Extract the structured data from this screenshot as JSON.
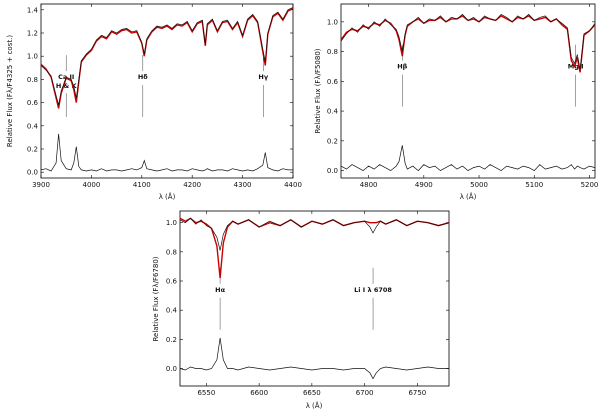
{
  "panel_labels": {
    "ylabel_1": "Relative Flux (Fλ/F4325 + cost.)",
    "ylabel_2": "Relative Flux (Fλ/F5080)",
    "ylabel_3": "Relative Flux (Fλ/F6780)",
    "xlabel": "λ (Å)"
  },
  "colors": {
    "observed": "#111111",
    "model": "#cc0000",
    "frame": "#000000"
  },
  "chart_data": [
    {
      "type": "line",
      "title": "",
      "xlabel": "λ (Å)",
      "ylabel": "Relative Flux (Fλ/F4325 + cost.)",
      "xlim": [
        3900,
        4400
      ],
      "ylim": [
        -0.05,
        1.45
      ],
      "xticks": [
        3900,
        4000,
        4100,
        4200,
        4300,
        4400
      ],
      "yticks": [
        0.0,
        0.2,
        0.4,
        0.6,
        0.8,
        1.0,
        1.2,
        1.4
      ],
      "grid": false,
      "x": [
        3900,
        3910,
        3920,
        3930,
        3935,
        3940,
        3950,
        3960,
        3965,
        3970,
        3975,
        3980,
        3990,
        4000,
        4010,
        4020,
        4030,
        4040,
        4050,
        4060,
        4070,
        4080,
        4090,
        4100,
        4105,
        4110,
        4120,
        4130,
        4140,
        4150,
        4160,
        4170,
        4180,
        4190,
        4200,
        4210,
        4220,
        4226,
        4230,
        4240,
        4250,
        4260,
        4270,
        4280,
        4290,
        4300,
        4310,
        4320,
        4330,
        4340,
        4345,
        4350,
        4360,
        4370,
        4380,
        4390,
        4400
      ],
      "series": [
        {
          "role": "observed",
          "values": [
            0.92,
            0.88,
            0.83,
            0.66,
            0.58,
            0.7,
            0.82,
            0.8,
            0.74,
            0.64,
            0.8,
            0.96,
            1.02,
            1.06,
            1.14,
            1.18,
            1.16,
            1.22,
            1.2,
            1.23,
            1.24,
            1.21,
            1.22,
            1.12,
            1.02,
            1.15,
            1.22,
            1.26,
            1.25,
            1.27,
            1.24,
            1.28,
            1.27,
            1.3,
            1.22,
            1.29,
            1.31,
            1.1,
            1.28,
            1.32,
            1.22,
            1.3,
            1.31,
            1.24,
            1.3,
            1.18,
            1.32,
            1.36,
            1.3,
            1.06,
            0.95,
            1.2,
            1.35,
            1.38,
            1.32,
            1.4,
            1.42
          ]
        },
        {
          "role": "model",
          "values": [
            0.93,
            0.89,
            0.82,
            0.64,
            0.55,
            0.68,
            0.81,
            0.79,
            0.71,
            0.6,
            0.78,
            0.95,
            1.01,
            1.05,
            1.13,
            1.17,
            1.15,
            1.21,
            1.19,
            1.22,
            1.23,
            1.2,
            1.21,
            1.11,
            1.0,
            1.14,
            1.21,
            1.25,
            1.24,
            1.26,
            1.23,
            1.27,
            1.26,
            1.29,
            1.21,
            1.28,
            1.3,
            1.09,
            1.27,
            1.31,
            1.21,
            1.29,
            1.3,
            1.23,
            1.29,
            1.17,
            1.31,
            1.35,
            1.29,
            1.04,
            0.92,
            1.19,
            1.34,
            1.37,
            1.31,
            1.39,
            1.41
          ]
        },
        {
          "role": "difference",
          "values": [
            0.02,
            0.03,
            0.01,
            0.08,
            0.33,
            0.1,
            0.03,
            0.02,
            0.08,
            0.22,
            0.05,
            0.02,
            0.01,
            0.02,
            0.01,
            0.03,
            0.01,
            0.02,
            0.02,
            0.01,
            0.02,
            0.03,
            0.02,
            0.04,
            0.1,
            0.03,
            0.02,
            0.01,
            0.02,
            0.03,
            0.01,
            0.02,
            0.02,
            0.01,
            0.03,
            0.02,
            0.01,
            0.02,
            0.03,
            0.01,
            0.02,
            0.02,
            0.01,
            0.03,
            0.02,
            0.01,
            0.02,
            0.01,
            0.03,
            0.06,
            0.17,
            0.04,
            0.02,
            0.01,
            0.03,
            0.02,
            0.02
          ]
        }
      ],
      "annotations": [
        {
          "text": "Ca II",
          "sub": "H & K",
          "x": 3950
        },
        {
          "text": "Hδ",
          "x": 4102
        },
        {
          "text": "Hγ",
          "x": 4341
        }
      ]
    },
    {
      "type": "line",
      "title": "",
      "xlabel": "λ (Å)",
      "ylabel": "Relative Flux (Fλ/F5080)",
      "xlim": [
        4750,
        5210
      ],
      "ylim": [
        -0.05,
        1.12
      ],
      "xticks": [
        4800,
        4900,
        5000,
        5100,
        5200
      ],
      "yticks": [
        0.0,
        0.2,
        0.4,
        0.6,
        0.8,
        1.0
      ],
      "grid": false,
      "x": [
        4750,
        4760,
        4770,
        4780,
        4790,
        4800,
        4810,
        4820,
        4830,
        4840,
        4850,
        4855,
        4861,
        4866,
        4870,
        4880,
        4890,
        4900,
        4910,
        4920,
        4930,
        4940,
        4950,
        4960,
        4970,
        4980,
        4990,
        5000,
        5010,
        5020,
        5030,
        5040,
        5050,
        5060,
        5070,
        5080,
        5090,
        5100,
        5110,
        5120,
        5130,
        5140,
        5150,
        5160,
        5167,
        5173,
        5178,
        5183,
        5190,
        5200,
        5210
      ],
      "series": [
        {
          "role": "observed",
          "values": [
            0.87,
            0.92,
            0.96,
            0.93,
            0.98,
            0.95,
            1.0,
            0.97,
            1.02,
            0.98,
            0.95,
            0.9,
            0.8,
            0.92,
            0.98,
            1.0,
            1.03,
            0.99,
            1.02,
            1.01,
            1.04,
            1.0,
            1.03,
            1.02,
            1.05,
            1.01,
            1.03,
            1.0,
            1.04,
            1.02,
            1.01,
            1.05,
            1.03,
            1.0,
            1.04,
            1.02,
            1.05,
            1.01,
            1.03,
            1.04,
            1.0,
            1.02,
            0.99,
            0.96,
            0.76,
            0.72,
            0.78,
            0.68,
            0.92,
            0.94,
            0.99
          ]
        },
        {
          "role": "model",
          "values": [
            0.88,
            0.93,
            0.95,
            0.94,
            0.97,
            0.96,
            0.99,
            0.98,
            1.01,
            0.99,
            0.94,
            0.88,
            0.77,
            0.91,
            0.97,
            1.0,
            1.02,
            0.99,
            1.01,
            1.01,
            1.03,
            1.0,
            1.02,
            1.02,
            1.04,
            1.01,
            1.02,
            1.0,
            1.03,
            1.02,
            1.01,
            1.04,
            1.02,
            1.0,
            1.03,
            1.02,
            1.04,
            1.01,
            1.02,
            1.03,
            1.0,
            1.02,
            0.98,
            0.95,
            0.74,
            0.7,
            0.76,
            0.66,
            0.91,
            0.94,
            0.98
          ]
        },
        {
          "role": "difference",
          "values": [
            0.03,
            0.01,
            0.04,
            0.02,
            0.0,
            0.03,
            0.01,
            0.04,
            0.02,
            0.0,
            0.03,
            0.06,
            0.17,
            0.05,
            0.01,
            0.03,
            0.0,
            0.04,
            0.02,
            0.03,
            0.0,
            0.02,
            0.04,
            0.01,
            0.03,
            0.0,
            0.02,
            0.03,
            0.01,
            0.04,
            0.02,
            0.0,
            0.03,
            0.02,
            0.01,
            0.03,
            0.02,
            0.0,
            0.04,
            0.01,
            0.02,
            0.03,
            0.01,
            0.02,
            0.04,
            0.01,
            0.03,
            0.02,
            0.01,
            0.03,
            0.02
          ]
        }
      ],
      "annotations": [
        {
          "text": "Hβ",
          "x": 4861
        },
        {
          "text": "Mg I",
          "x": 5175
        }
      ]
    },
    {
      "type": "line",
      "title": "",
      "xlabel": "λ (Å)",
      "ylabel": "Relative Flux (Fλ/F6780)",
      "xlim": [
        6525,
        6780
      ],
      "ylim": [
        -0.12,
        1.08
      ],
      "xticks": [
        6550,
        6600,
        6650,
        6700,
        6750
      ],
      "yticks": [
        0.0,
        0.2,
        0.4,
        0.6,
        0.8,
        1.0
      ],
      "grid": false,
      "x": [
        6525,
        6530,
        6535,
        6540,
        6545,
        6550,
        6555,
        6560,
        6563,
        6566,
        6570,
        6575,
        6580,
        6590,
        6600,
        6610,
        6620,
        6630,
        6640,
        6650,
        6660,
        6670,
        6680,
        6690,
        6700,
        6705,
        6708,
        6711,
        6715,
        6720,
        6730,
        6740,
        6750,
        6760,
        6770,
        6780
      ],
      "series": [
        {
          "role": "observed",
          "values": [
            1.02,
            1.0,
            1.03,
            0.99,
            1.02,
            0.98,
            0.96,
            0.9,
            0.81,
            0.92,
            0.98,
            1.01,
            0.99,
            1.02,
            0.97,
            1.01,
            0.98,
            1.02,
            0.97,
            1.01,
            0.99,
            1.02,
            0.98,
            1.0,
            1.01,
            0.97,
            0.93,
            0.97,
            1.01,
            0.99,
            1.02,
            0.98,
            1.01,
            1.0,
            0.98,
            1.0
          ]
        },
        {
          "role": "model",
          "values": [
            1.03,
            1.01,
            1.03,
            1.0,
            1.01,
            0.99,
            0.96,
            0.84,
            0.62,
            0.86,
            0.97,
            1.01,
            0.99,
            1.02,
            0.97,
            1.0,
            0.98,
            1.02,
            0.97,
            1.01,
            0.99,
            1.02,
            0.98,
            1.0,
            1.01,
            1.0,
            1.0,
            1.0,
            1.01,
            0.99,
            1.02,
            0.98,
            1.01,
            1.0,
            0.98,
            1.0
          ]
        },
        {
          "role": "difference",
          "values": [
            0.0,
            -0.01,
            0.01,
            0.0,
            0.0,
            -0.01,
            0.0,
            0.06,
            0.21,
            0.06,
            0.0,
            0.0,
            -0.01,
            0.01,
            0.0,
            -0.01,
            0.0,
            0.01,
            0.0,
            -0.01,
            0.0,
            0.0,
            -0.01,
            0.0,
            0.0,
            -0.03,
            -0.07,
            -0.03,
            0.0,
            0.01,
            0.0,
            -0.01,
            0.0,
            0.01,
            0.0,
            0.0
          ]
        }
      ],
      "annotations": [
        {
          "text": "Hα",
          "x": 6563
        },
        {
          "text": "Li I λ 6708",
          "x": 6708
        }
      ]
    }
  ]
}
